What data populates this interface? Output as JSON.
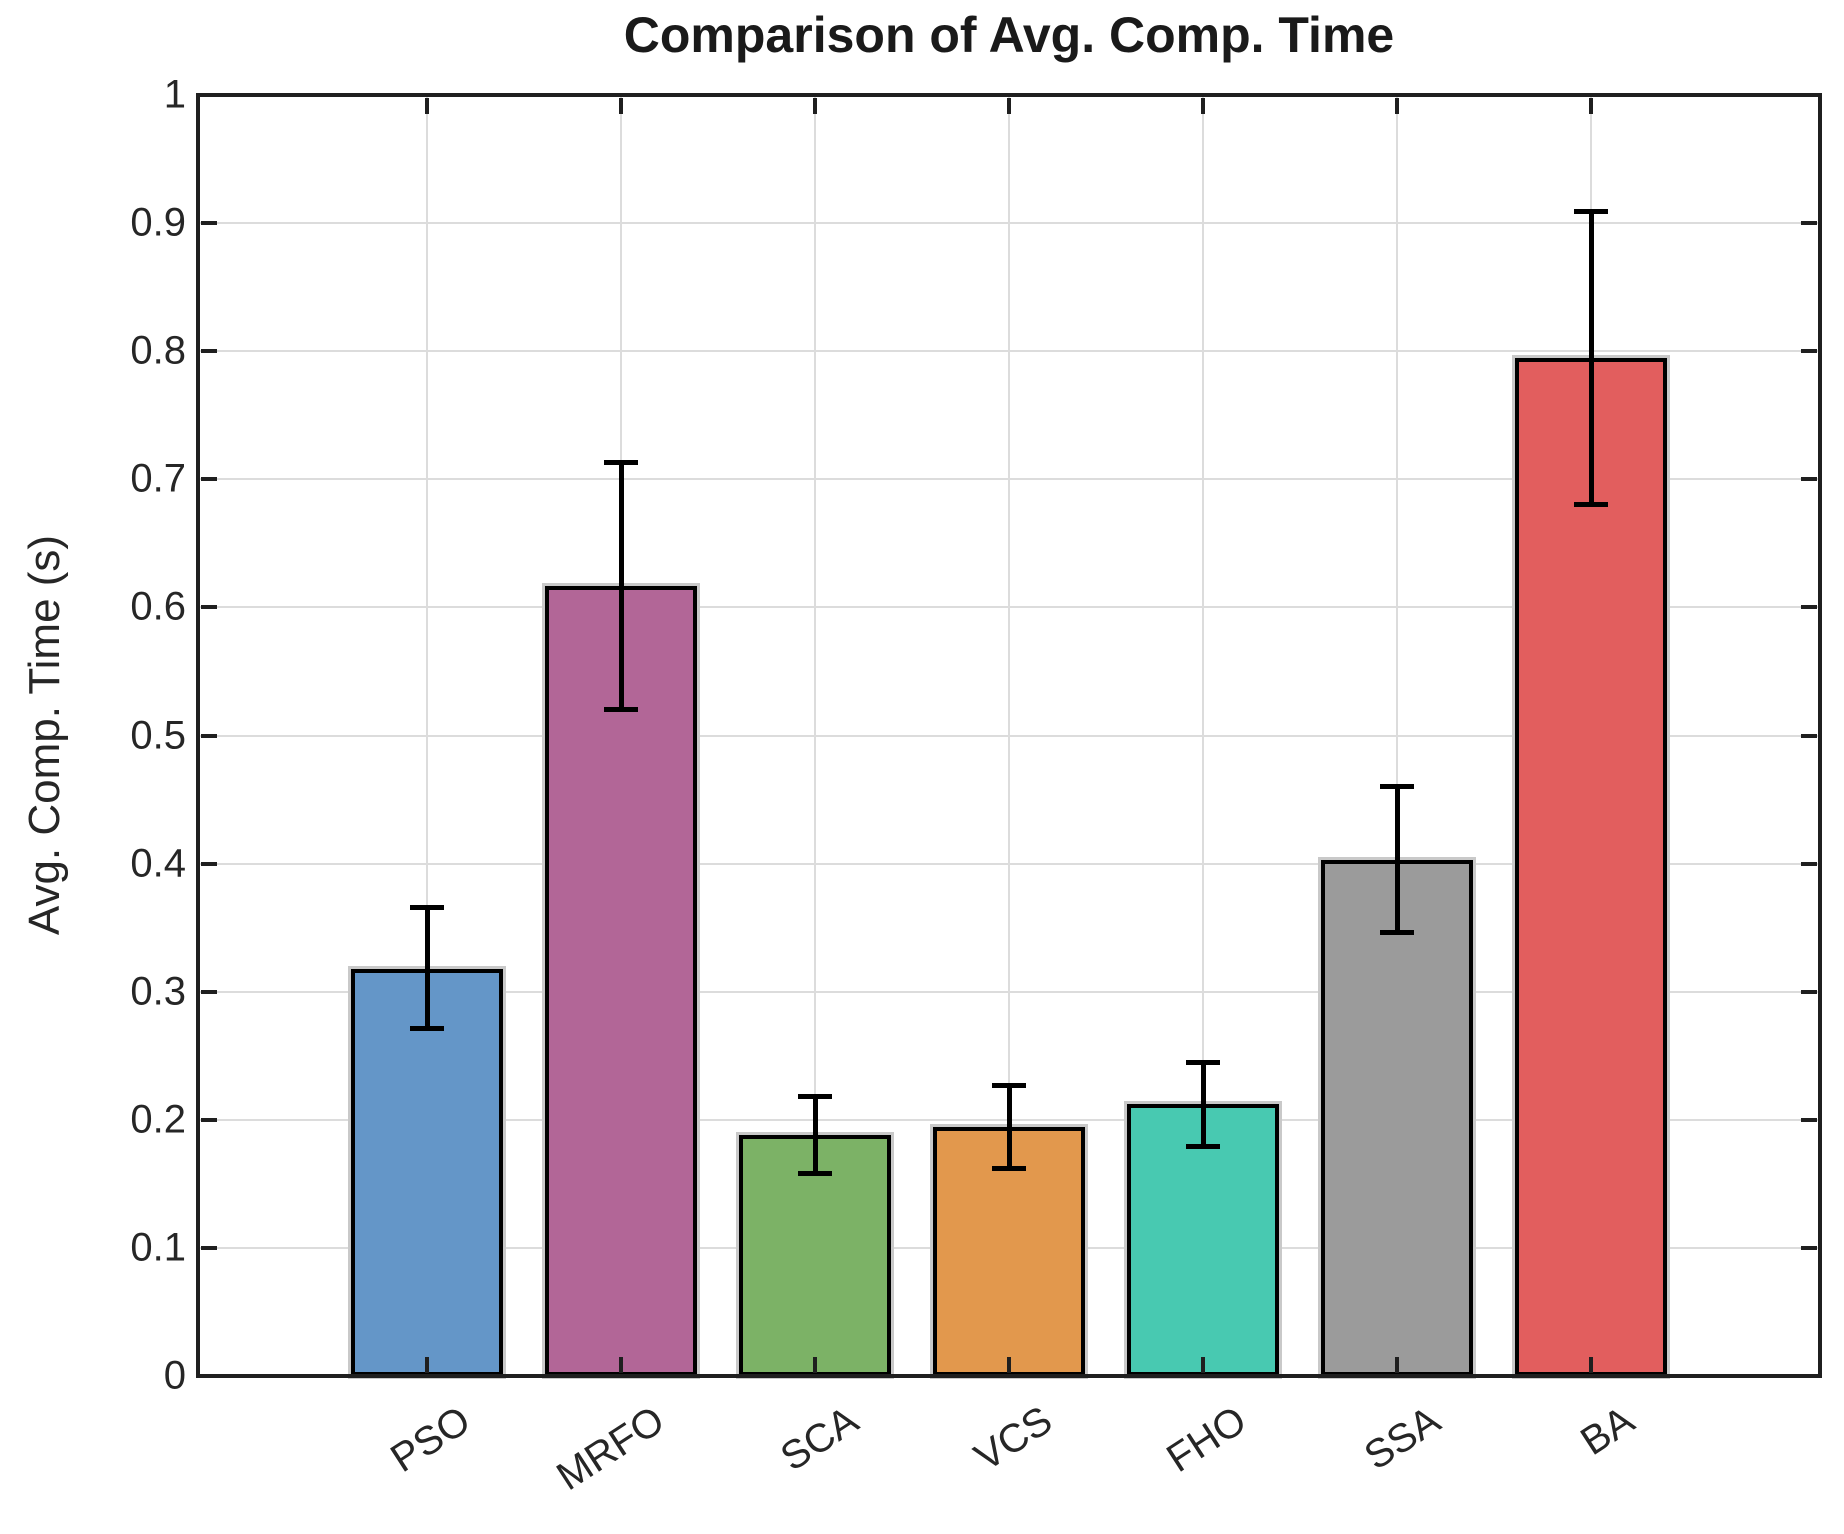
{
  "chart_data": {
    "type": "bar",
    "title": "Comparison of Avg. Comp. Time",
    "xlabel": "",
    "ylabel": "Avg. Comp. Time (s)",
    "categories": [
      "PSO",
      "MRFO",
      "SCA",
      "VCS",
      "FHO",
      "SSA",
      "BA"
    ],
    "values": [
      0.318,
      0.617,
      0.188,
      0.194,
      0.212,
      0.403,
      0.795
    ],
    "error_low": [
      0.271,
      0.52,
      0.158,
      0.162,
      0.179,
      0.346,
      0.68
    ],
    "error_high": [
      0.366,
      0.713,
      0.218,
      0.227,
      0.245,
      0.46,
      0.909
    ],
    "bar_colors": [
      "#6496C8",
      "#B26697",
      "#7CB266",
      "#E2984D",
      "#48C9B1",
      "#9B9B9B",
      "#E25E5E"
    ],
    "bar_edge_color": "#000000",
    "errorbar_color": "#000000",
    "ylim": [
      0,
      1
    ],
    "yticks": [
      0,
      0.1,
      0.2,
      0.3,
      0.4,
      0.5,
      0.6,
      0.7,
      0.8,
      0.9,
      1
    ],
    "ytick_labels": [
      "0",
      "0.1",
      "0.2",
      "0.3",
      "0.4",
      "0.5",
      "0.6",
      "0.7",
      "0.8",
      "0.9",
      "1"
    ],
    "grid": true,
    "grid_color": "#dcdcdc",
    "axis_color": "#1f1f1f",
    "background": "#ffffff",
    "legend": null,
    "x_tick_rotation_deg": 33
  }
}
